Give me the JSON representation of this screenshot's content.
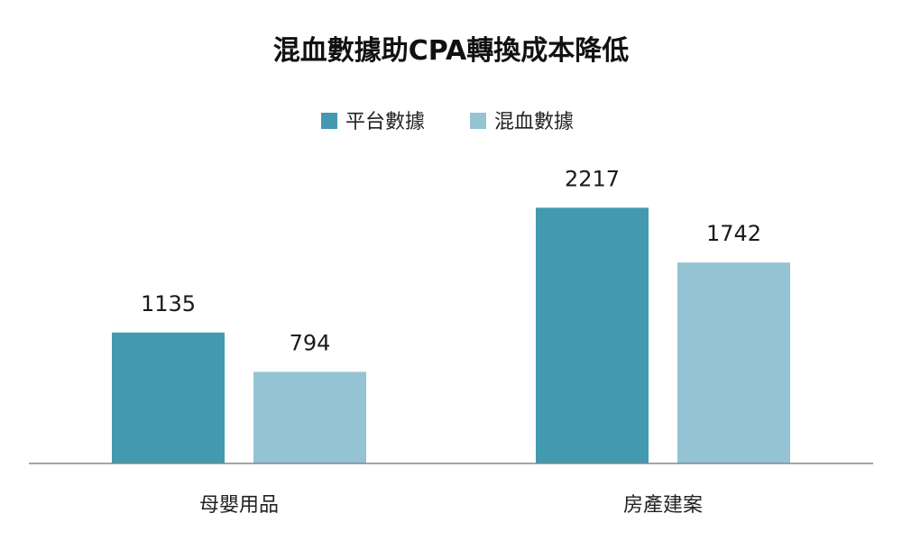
{
  "chart_data": {
    "type": "bar",
    "title": "混血數據助CPA轉換成本降低",
    "categories": [
      "母嬰用品",
      "房產建案"
    ],
    "series": [
      {
        "name": "平台數據",
        "values": [
          1135,
          2217
        ],
        "color": "#4399b0"
      },
      {
        "name": "混血數據",
        "values": [
          794,
          1742
        ],
        "color": "#94c3d4"
      }
    ],
    "ylim": [
      0,
      2900
    ],
    "grid": false,
    "legend_position": "top-center",
    "axis_color": "#888888"
  }
}
